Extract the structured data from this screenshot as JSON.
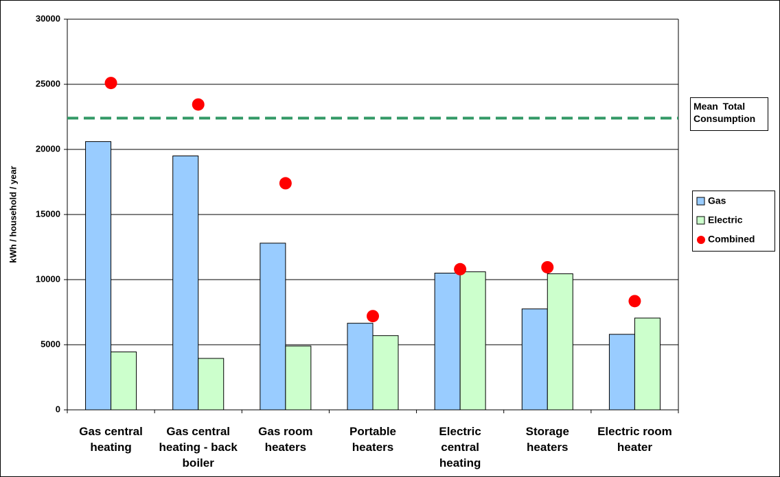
{
  "chart_data": {
    "type": "bar",
    "ylabel": "kWh / household / year",
    "categories": [
      "Gas central heating",
      "Gas central heating - back boiler",
      "Gas room heaters",
      "Portable heaters",
      "Electric central heating",
      "Storage heaters",
      "Electric room heater"
    ],
    "series": [
      {
        "name": "Gas",
        "color": "#99ccff",
        "kind": "bar",
        "values": [
          20600,
          19500,
          12800,
          6650,
          10500,
          7750,
          5800
        ]
      },
      {
        "name": "Electric",
        "color": "#ccffcc",
        "kind": "bar",
        "values": [
          4450,
          3950,
          4900,
          5700,
          10600,
          10450,
          7050
        ]
      },
      {
        "name": "Combined",
        "color": "#ff0000",
        "kind": "dot",
        "values": [
          25100,
          23450,
          17400,
          7200,
          10800,
          10950,
          8350
        ]
      }
    ],
    "mean_line": {
      "label": "Mean Total Consumption",
      "value": 22400,
      "color": "#339966"
    },
    "ylim": [
      0,
      30000
    ],
    "yticks": [
      0,
      5000,
      10000,
      15000,
      20000,
      25000,
      30000
    ],
    "grid": true
  }
}
